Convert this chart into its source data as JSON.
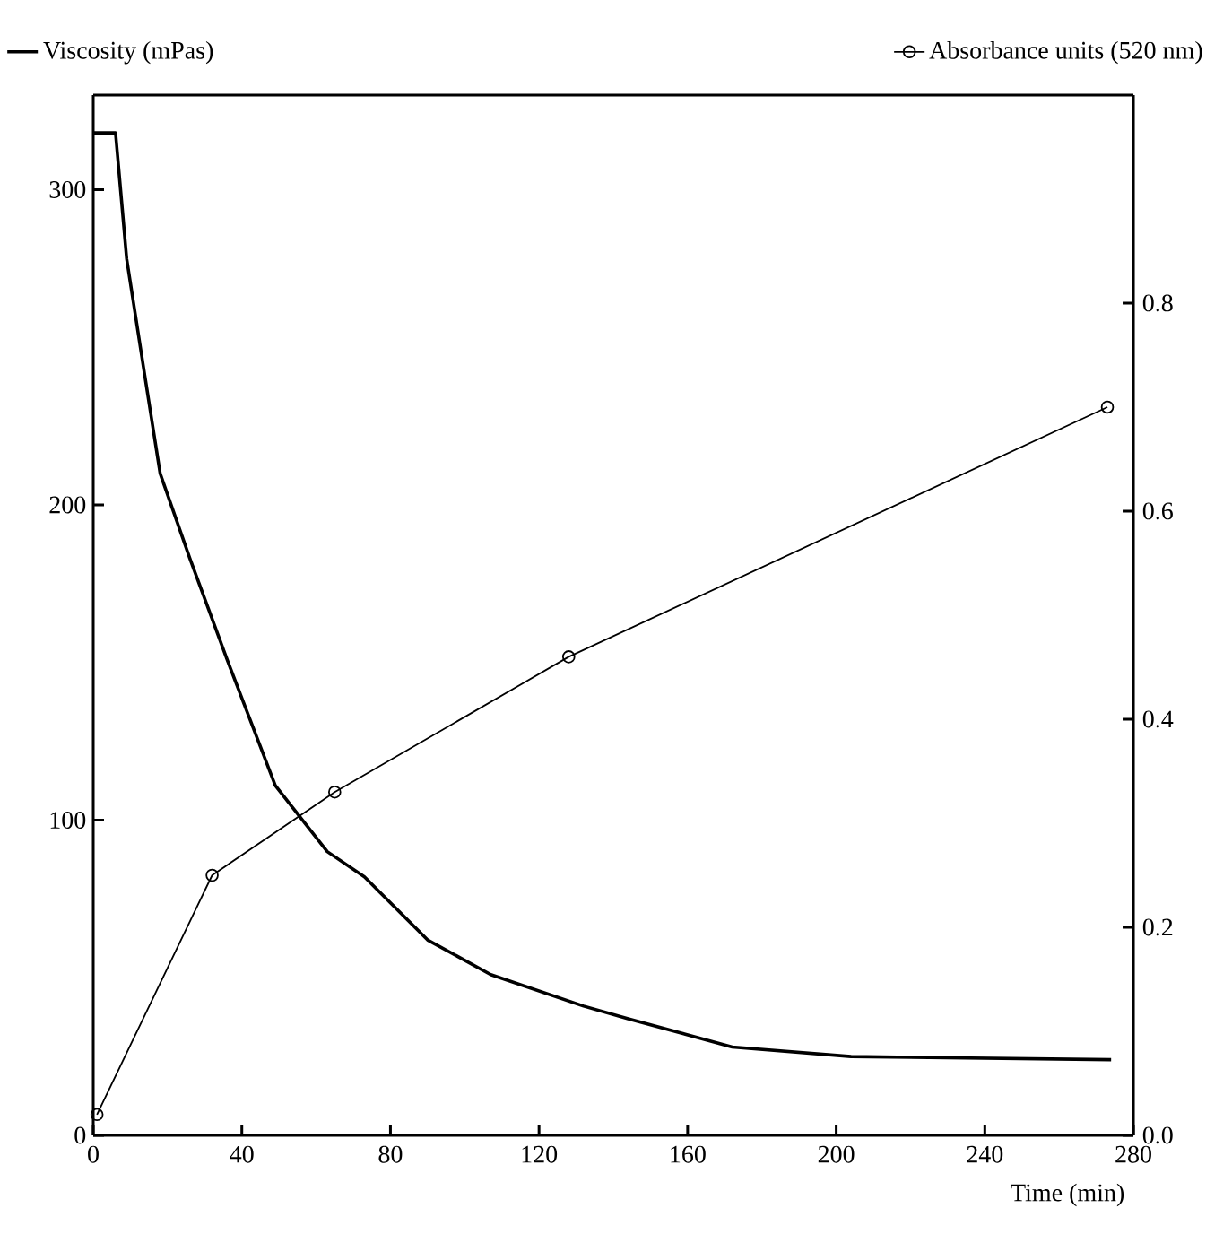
{
  "chart_data": {
    "type": "line",
    "xlabel": "Time (min)",
    "legend": "top",
    "xlim": [
      0,
      280
    ],
    "xticks": [
      0,
      40,
      80,
      120,
      160,
      200,
      240,
      280
    ],
    "ylim": [
      0,
      330
    ],
    "yticks": [
      0,
      100,
      200,
      300
    ],
    "y2lim": [
      0,
      1.0
    ],
    "y2ticks": [
      {
        "value": 0,
        "label": "0.0"
      },
      0.2,
      0.4,
      0.6,
      0.8
    ],
    "series": [
      {
        "name": "Viscosity (mPas)",
        "color": "#000000",
        "marker": "none",
        "axis": "y",
        "x": [
          0,
          6,
          9,
          14,
          18,
          26,
          36,
          49,
          63,
          73,
          90,
          107,
          132,
          144,
          172,
          204,
          274
        ],
        "values": [
          318,
          318,
          278,
          240,
          210,
          183,
          151,
          111,
          90,
          82,
          62,
          51,
          41,
          37,
          28,
          25,
          24
        ]
      },
      {
        "name": "Absorbance units (520 nm)",
        "color": "#000000",
        "marker": "circle",
        "axis": "y2",
        "x": [
          1,
          32,
          65,
          128,
          273
        ],
        "values": [
          0.02,
          0.25,
          0.33,
          0.46,
          0.7
        ]
      }
    ]
  }
}
